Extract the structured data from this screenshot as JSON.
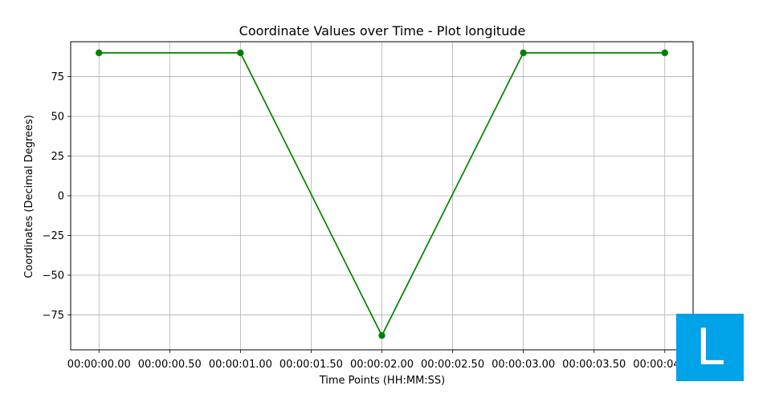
{
  "chart_data": {
    "type": "line",
    "title": "Coordinate Values over Time - Plot longitude",
    "xlabel": "Time Points (HH:MM:SS)",
    "ylabel": "Coordinates (Decimal Degrees)",
    "x_tick_labels": [
      "00:00:00.00",
      "00:00:00.50",
      "00:00:01.00",
      "00:00:01.50",
      "00:00:02.00",
      "00:00:02.50",
      "00:00:03.00",
      "00:00:03.50",
      "00:00:04.00"
    ],
    "x_tick_values": [
      0,
      0.5,
      1.0,
      1.5,
      2.0,
      2.5,
      3.0,
      3.5,
      4.0
    ],
    "y_ticks": [
      -75,
      -50,
      -25,
      0,
      25,
      50,
      75
    ],
    "xlim": [
      -0.2,
      4.2
    ],
    "ylim": [
      -97,
      97
    ],
    "grid": true,
    "series": [
      {
        "x": [
          0,
          1,
          2,
          3,
          4
        ],
        "values": [
          90,
          90,
          -88,
          90,
          90
        ],
        "color": "#008000"
      }
    ]
  },
  "badge": {
    "letter": "L",
    "color": "#00a2e8"
  }
}
